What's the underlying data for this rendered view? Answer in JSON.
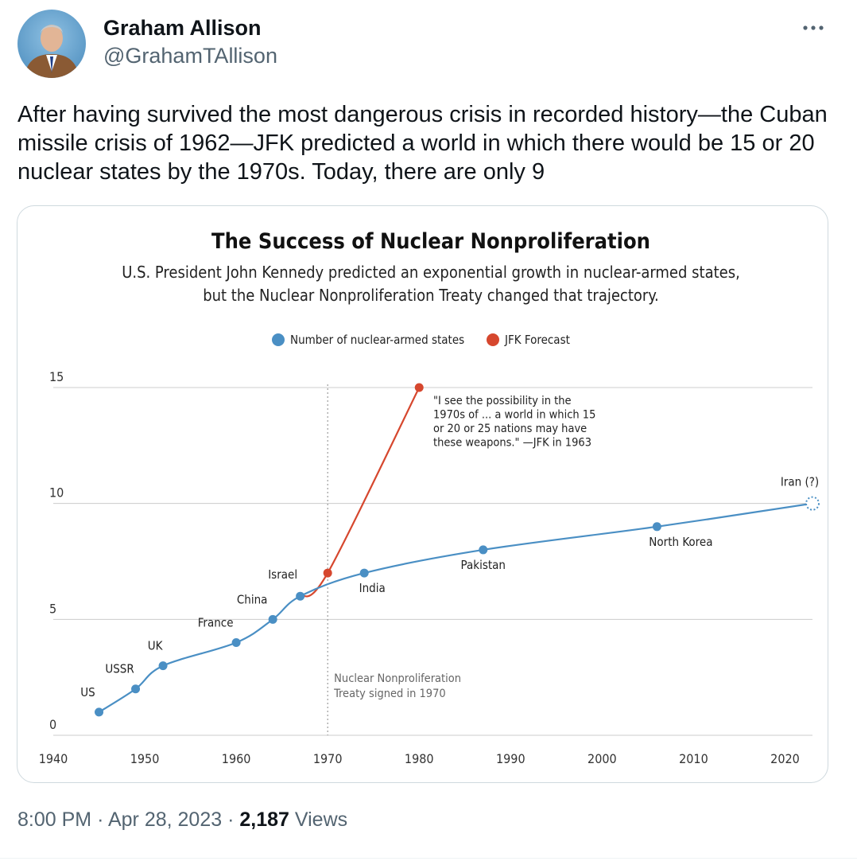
{
  "author": {
    "name": "Graham Allison",
    "handle": "@GrahamTAllison"
  },
  "tweet": {
    "text": "After having survived the most dangerous crisis in recorded history—the Cuban missile crisis of 1962—JFK predicted a world in which there would be 15 or 20 nuclear states by the 1970s. Today, there are only 9"
  },
  "meta": {
    "time": "8:00 PM",
    "separator": "·",
    "date": "Apr 28, 2023",
    "views_count": "2,187",
    "views_label": "Views"
  },
  "icons": {
    "more": "more-horizontal-icon",
    "avatar": "profile-photo"
  },
  "colors": {
    "blue_series": "#4a8fc4",
    "red_series": "#d6472e",
    "grid": "#cccccc",
    "text": "#222222"
  },
  "chart_data": {
    "type": "line",
    "title": "The Success of Nuclear Nonproliferation",
    "subtitle_lines": [
      "U.S. President John Kennedy predicted an exponential growth in nuclear-armed states,",
      "but the Nuclear Nonproliferation Treaty changed that trajectory."
    ],
    "legend": [
      "Number of nuclear-armed states",
      "JFK Forecast"
    ],
    "legend_placement": "top-center",
    "xlim": [
      1940,
      2023
    ],
    "ylim": [
      0,
      15
    ],
    "x_ticks": [
      "1940",
      "1950",
      "1960",
      "1970",
      "1980",
      "1990",
      "2000",
      "2010",
      "2020"
    ],
    "y_ticks": [
      "0",
      "5",
      "10",
      "15"
    ],
    "grid": true,
    "series": [
      {
        "name": "Number of nuclear-armed states",
        "points": [
          {
            "x": 1945,
            "y": 1,
            "label": "US"
          },
          {
            "x": 1949,
            "y": 2,
            "label": "USSR"
          },
          {
            "x": 1952,
            "y": 3,
            "label": "UK"
          },
          {
            "x": 1960,
            "y": 4,
            "label": "France"
          },
          {
            "x": 1964,
            "y": 5,
            "label": "China"
          },
          {
            "x": 1967,
            "y": 6,
            "label": "Israel"
          },
          {
            "x": 1974,
            "y": 7,
            "label": "India"
          },
          {
            "x": 1987,
            "y": 8,
            "label": "Pakistan"
          },
          {
            "x": 2006,
            "y": 9,
            "label": "North Korea"
          },
          {
            "x": 2023,
            "y": 10,
            "label": "Iran (?)"
          }
        ]
      },
      {
        "name": "JFK Forecast",
        "points": [
          {
            "x": 1967,
            "y": 6
          },
          {
            "x": 1970,
            "y": 7
          },
          {
            "x": 1980,
            "y": 15
          }
        ]
      }
    ],
    "annotations": {
      "treaty_year": 1970,
      "treaty_label_lines": [
        "Nuclear Nonproliferation",
        "Treaty signed in 1970"
      ],
      "quote_lines": [
        "\"I see the possibility in the",
        "1970s of ... a world in which 15",
        "or 20 or 25 nations may have",
        "these weapons.\" —JFK in 1963"
      ]
    }
  }
}
